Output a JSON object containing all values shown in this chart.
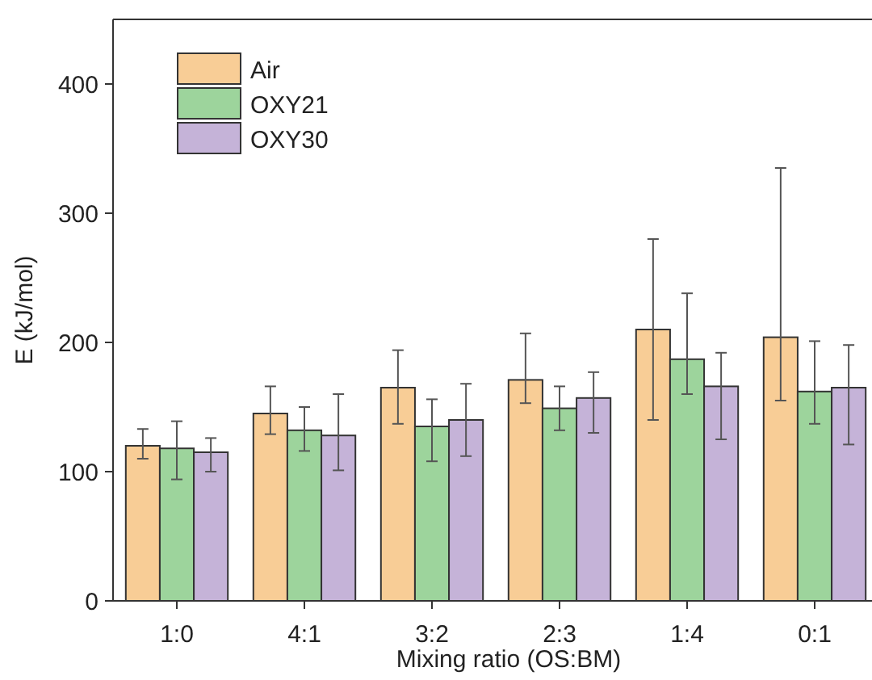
{
  "chart_data": {
    "type": "bar",
    "xlabel": "Mixing ratio (OS:BM)",
    "ylabel": "E (kJ/mol)",
    "categories": [
      "1:0",
      "4:1",
      "3:2",
      "2:3",
      "1:4",
      "0:1"
    ],
    "series": [
      {
        "name": "Air",
        "color": "#f8cd96",
        "values": [
          120,
          145,
          165,
          171,
          210,
          204
        ],
        "errors": [
          [
            110,
            133
          ],
          [
            129,
            166
          ],
          [
            137,
            194
          ],
          [
            153,
            207
          ],
          [
            140,
            280
          ],
          [
            155,
            335
          ]
        ]
      },
      {
        "name": "OXY21",
        "color": "#9dd49c",
        "values": [
          118,
          132,
          135,
          149,
          187,
          162
        ],
        "errors": [
          [
            94,
            139
          ],
          [
            116,
            150
          ],
          [
            108,
            156
          ],
          [
            132,
            166
          ],
          [
            160,
            238
          ],
          [
            137,
            201
          ]
        ]
      },
      {
        "name": "OXY30",
        "color": "#c5b3d8",
        "values": [
          115,
          128,
          140,
          157,
          166,
          165
        ],
        "errors": [
          [
            100,
            126
          ],
          [
            101,
            160
          ],
          [
            112,
            168
          ],
          [
            130,
            177
          ],
          [
            125,
            192
          ],
          [
            121,
            198
          ]
        ]
      }
    ],
    "ylim": [
      0,
      450
    ],
    "yticks": [
      0,
      100,
      200,
      300,
      400
    ],
    "grid": false,
    "legend": "top left"
  }
}
